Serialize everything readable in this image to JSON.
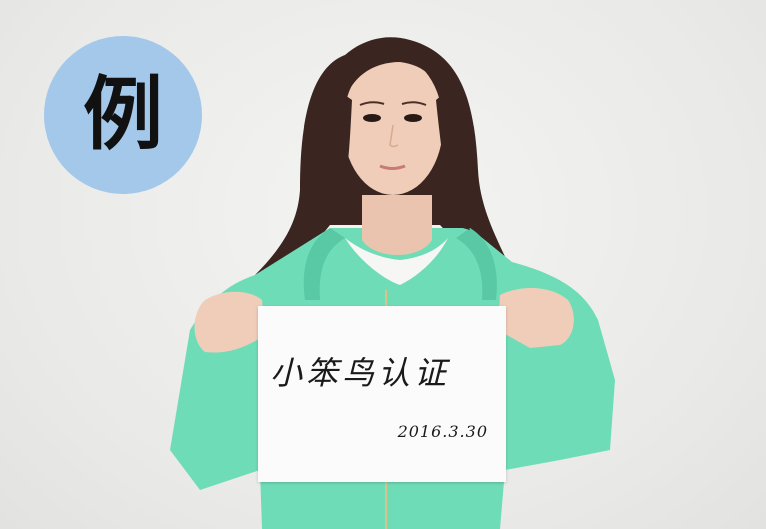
{
  "badge": {
    "text": "例",
    "color": "#a3c8ea"
  },
  "sign": {
    "title": "小笨鸟认证",
    "date": "2016.3.30"
  },
  "colors": {
    "hoodie": "#6fdcb8",
    "hair": "#3a2520",
    "skin": "#f0cdb8",
    "wall": "#ececea"
  }
}
